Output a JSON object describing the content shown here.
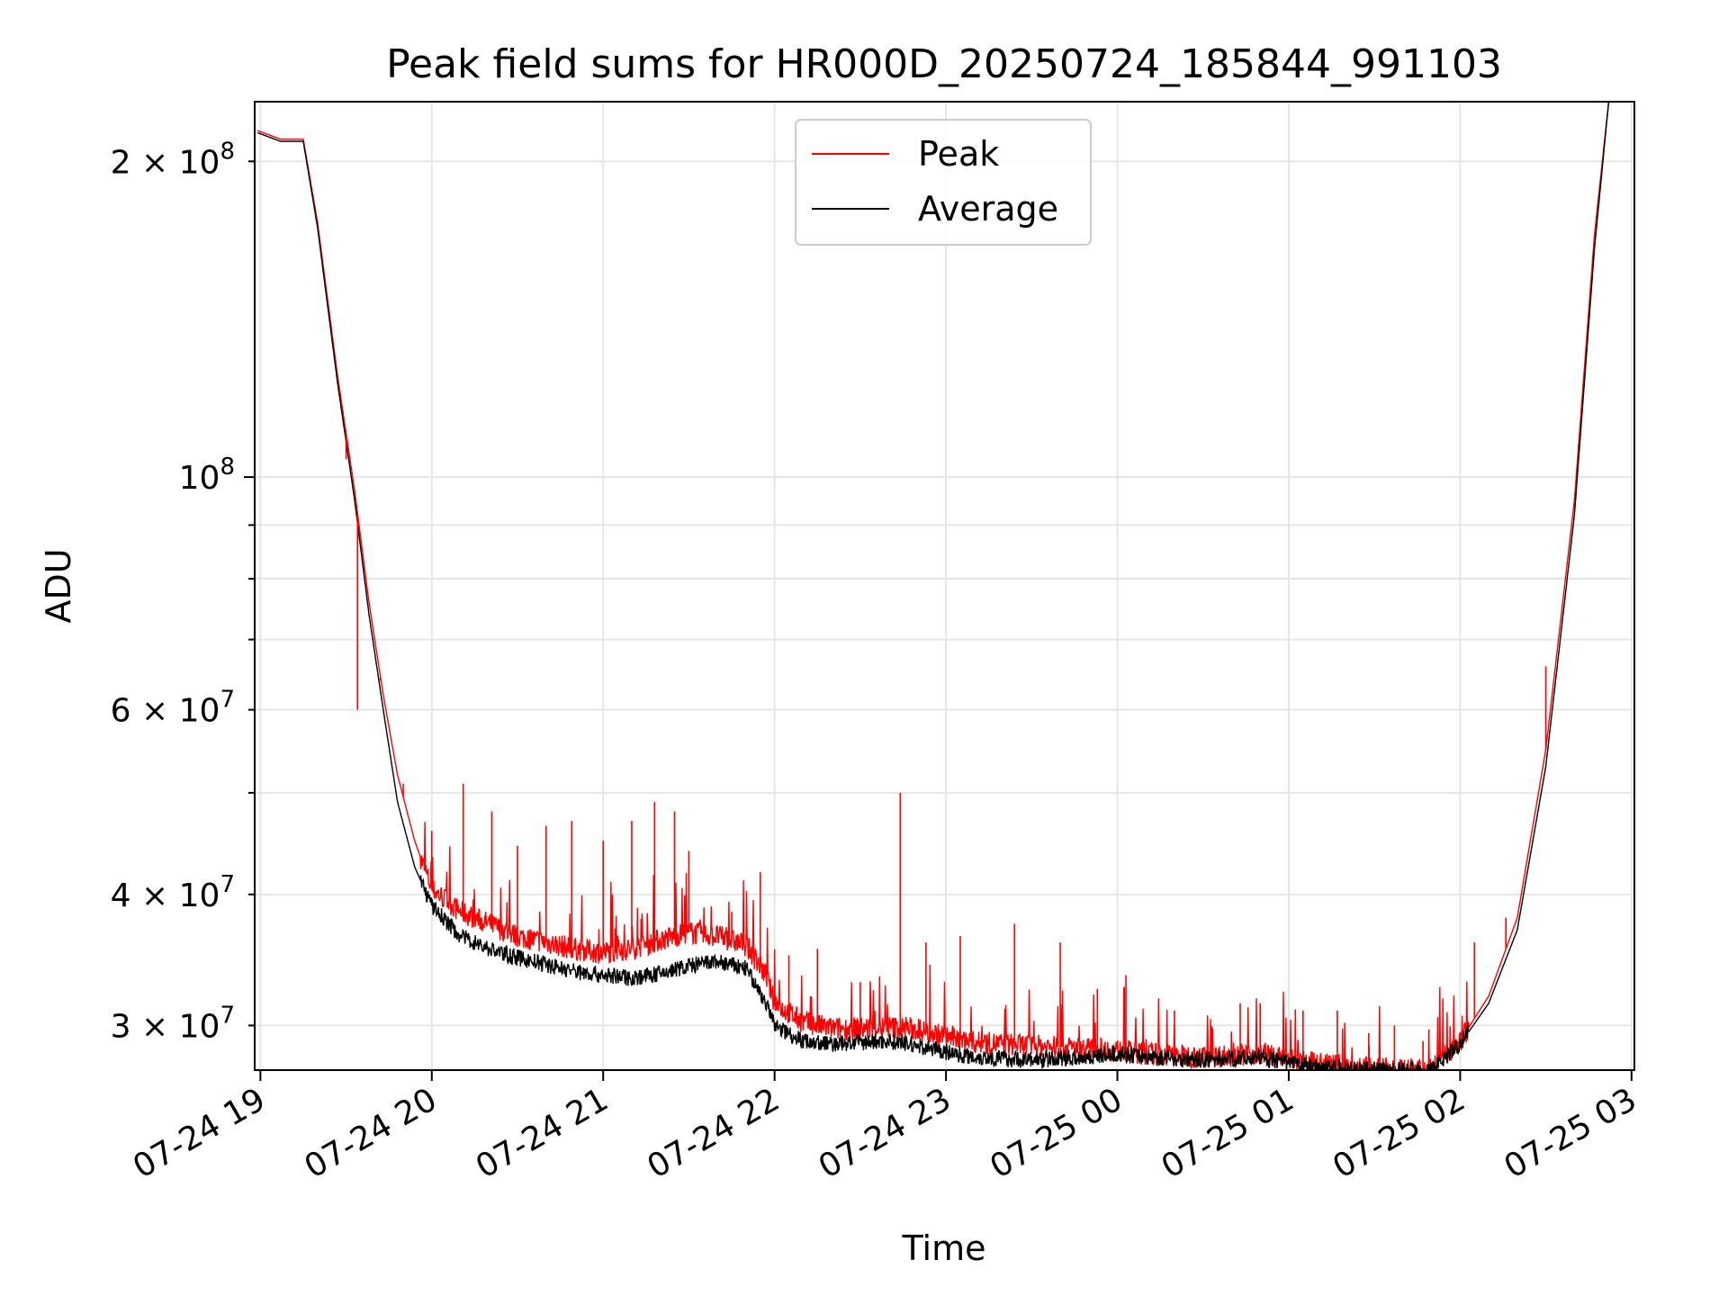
{
  "chart_data": {
    "type": "line",
    "title": "Peak field sums for HR000D_20250724_185844_991103",
    "xlabel": "Time",
    "ylabel": "ADU",
    "yscale": "log",
    "grid": true,
    "legend_position": "top-center",
    "xlim": [
      "2025-07-24 18:58",
      "2025-07-25 03:01"
    ],
    "ylim": [
      27200000,
      228000000
    ],
    "x_ticks": [
      "07-24 19",
      "07-24 20",
      "07-24 21",
      "07-24 22",
      "07-24 23",
      "07-25 00",
      "07-25 01",
      "07-25 02",
      "07-25 03"
    ],
    "y_ticks_major": [
      {
        "value": 100000000,
        "mantissa": "",
        "base": "10",
        "exp": "8"
      }
    ],
    "y_ticks_minor": [
      {
        "value": 30000000,
        "mantissa": "3",
        "base": "10",
        "exp": "7"
      },
      {
        "value": 40000000,
        "mantissa": "4",
        "base": "10",
        "exp": "7"
      },
      {
        "value": 60000000,
        "mantissa": "6",
        "base": "10",
        "exp": "7"
      },
      {
        "value": 200000000,
        "mantissa": "2",
        "base": "10",
        "exp": "8"
      }
    ],
    "y_minor_gridlines": [
      50000000,
      70000000,
      80000000,
      90000000
    ],
    "series": [
      {
        "name": "Peak",
        "color": "#ff0000",
        "x": [
          "2025-07-24 18:59",
          "2025-07-24 19:07",
          "2025-07-24 19:15",
          "2025-07-24 19:20",
          "2025-07-24 19:27",
          "2025-07-24 19:33",
          "2025-07-24 19:38",
          "2025-07-24 19:43",
          "2025-07-24 19:48",
          "2025-07-24 19:54",
          "2025-07-24 20:00",
          "2025-07-24 20:10",
          "2025-07-24 20:20",
          "2025-07-24 20:30",
          "2025-07-24 20:40",
          "2025-07-24 20:50",
          "2025-07-24 21:00",
          "2025-07-24 21:10",
          "2025-07-24 21:20",
          "2025-07-24 21:30",
          "2025-07-24 21:40",
          "2025-07-24 21:50",
          "2025-07-24 21:57",
          "2025-07-24 22:00",
          "2025-07-24 22:10",
          "2025-07-24 22:20",
          "2025-07-24 22:30",
          "2025-07-24 22:40",
          "2025-07-24 22:50",
          "2025-07-24 23:00",
          "2025-07-24 23:10",
          "2025-07-24 23:20",
          "2025-07-24 23:30",
          "2025-07-24 23:40",
          "2025-07-24 23:50",
          "2025-07-25 00:00",
          "2025-07-25 00:10",
          "2025-07-25 00:20",
          "2025-07-25 00:30",
          "2025-07-25 00:40",
          "2025-07-25 00:50",
          "2025-07-25 01:00",
          "2025-07-25 01:10",
          "2025-07-25 01:20",
          "2025-07-25 01:30",
          "2025-07-25 01:40",
          "2025-07-25 01:50",
          "2025-07-25 02:00",
          "2025-07-25 02:10",
          "2025-07-25 02:20",
          "2025-07-25 02:30",
          "2025-07-25 02:40",
          "2025-07-25 02:47",
          "2025-07-25 02:52"
        ],
        "y": [
          214000000,
          210000000,
          210000000,
          175000000,
          125000000,
          97000000,
          76000000,
          62000000,
          52000000,
          45000000,
          40500000,
          38500000,
          37500000,
          36500000,
          36000000,
          35500000,
          35200000,
          35500000,
          36200000,
          36800000,
          36500000,
          35800000,
          33500000,
          31500000,
          30200000,
          29800000,
          29800000,
          29900000,
          29700000,
          29300000,
          28900000,
          28800000,
          28700000,
          28600000,
          28500000,
          28400000,
          28200000,
          28100000,
          28000000,
          28100000,
          28200000,
          27800000,
          27600000,
          27400000,
          27300000,
          27200000,
          27300000,
          29000000,
          32000000,
          38000000,
          55000000,
          95000000,
          170000000,
          228000000
        ]
      },
      {
        "name": "Average",
        "color": "#000000",
        "x": [
          "2025-07-24 18:59",
          "2025-07-24 19:07",
          "2025-07-24 19:15",
          "2025-07-24 19:20",
          "2025-07-24 19:27",
          "2025-07-24 19:33",
          "2025-07-24 19:38",
          "2025-07-24 19:43",
          "2025-07-24 19:48",
          "2025-07-24 19:54",
          "2025-07-24 20:00",
          "2025-07-24 20:10",
          "2025-07-24 20:20",
          "2025-07-24 20:30",
          "2025-07-24 20:40",
          "2025-07-24 20:50",
          "2025-07-24 21:00",
          "2025-07-24 21:10",
          "2025-07-24 21:20",
          "2025-07-24 21:30",
          "2025-07-24 21:40",
          "2025-07-24 21:50",
          "2025-07-24 21:57",
          "2025-07-24 22:00",
          "2025-07-24 22:10",
          "2025-07-24 22:20",
          "2025-07-24 22:30",
          "2025-07-24 22:40",
          "2025-07-24 22:50",
          "2025-07-24 23:00",
          "2025-07-24 23:10",
          "2025-07-24 23:20",
          "2025-07-24 23:30",
          "2025-07-24 23:40",
          "2025-07-24 23:50",
          "2025-07-25 00:00",
          "2025-07-25 00:10",
          "2025-07-25 00:20",
          "2025-07-25 00:30",
          "2025-07-25 00:40",
          "2025-07-25 00:50",
          "2025-07-25 01:00",
          "2025-07-25 01:10",
          "2025-07-25 01:20",
          "2025-07-25 01:30",
          "2025-07-25 01:40",
          "2025-07-25 01:50",
          "2025-07-25 02:00",
          "2025-07-25 02:10",
          "2025-07-25 02:20",
          "2025-07-25 02:30",
          "2025-07-25 02:40",
          "2025-07-25 02:47",
          "2025-07-25 02:52"
        ],
        "y": [
          213000000,
          209000000,
          209000000,
          173000000,
          123000000,
          95000000,
          74000000,
          60000000,
          49000000,
          42500000,
          39000000,
          36500000,
          35500000,
          34800000,
          34300000,
          33800000,
          33500000,
          33300000,
          33600000,
          34200000,
          34500000,
          34000000,
          31500000,
          30000000,
          29000000,
          28800000,
          28900000,
          29000000,
          28700000,
          28300000,
          28000000,
          27900000,
          27800000,
          27900000,
          28000000,
          28200000,
          28000000,
          27900000,
          27800000,
          27900000,
          28000000,
          27600000,
          27400000,
          27300000,
          27200000,
          27200000,
          27300000,
          28800000,
          31500000,
          37000000,
          53000000,
          92000000,
          165000000,
          228000000
        ]
      }
    ],
    "spikes": {
      "series": "Peak",
      "x": [
        "2025-07-24 19:30",
        "2025-07-24 19:34",
        "2025-07-24 19:42",
        "2025-07-24 19:50",
        "2025-07-24 20:00",
        "2025-07-24 20:11",
        "2025-07-24 20:21",
        "2025-07-24 20:30",
        "2025-07-24 20:40",
        "2025-07-24 20:49",
        "2025-07-24 21:00",
        "2025-07-24 21:10",
        "2025-07-24 21:18",
        "2025-07-24 21:25",
        "2025-07-24 21:30",
        "2025-07-24 21:35",
        "2025-07-24 21:45",
        "2025-07-24 21:55",
        "2025-07-24 22:05",
        "2025-07-24 22:15",
        "2025-07-24 22:30",
        "2025-07-24 22:44",
        "2025-07-24 22:53",
        "2025-07-24 23:05",
        "2025-07-24 23:24",
        "2025-07-24 23:40",
        "2025-07-24 23:53",
        "2025-07-25 00:03",
        "2025-07-25 00:20",
        "2025-07-25 00:43",
        "2025-07-25 00:50",
        "2025-07-25 01:05",
        "2025-07-25 01:17",
        "2025-07-25 01:28",
        "2025-07-25 01:37",
        "2025-07-25 01:47",
        "2025-07-25 02:05",
        "2025-07-25 02:16",
        "2025-07-25 02:30"
      ],
      "y": [
        104000000,
        60000000,
        64000000,
        51000000,
        46000000,
        51000000,
        48000000,
        44500000,
        46500000,
        47000000,
        45000000,
        47000000,
        49000000,
        48000000,
        44000000,
        36000000,
        38500000,
        42000000,
        35000000,
        35500000,
        33000000,
        50000000,
        36000000,
        36500000,
        37500000,
        36000000,
        32500000,
        33500000,
        31000000,
        31500000,
        31500000,
        31000000,
        31000000,
        29500000,
        30000000,
        29000000,
        36000000,
        38000000,
        66000000
      ]
    }
  }
}
